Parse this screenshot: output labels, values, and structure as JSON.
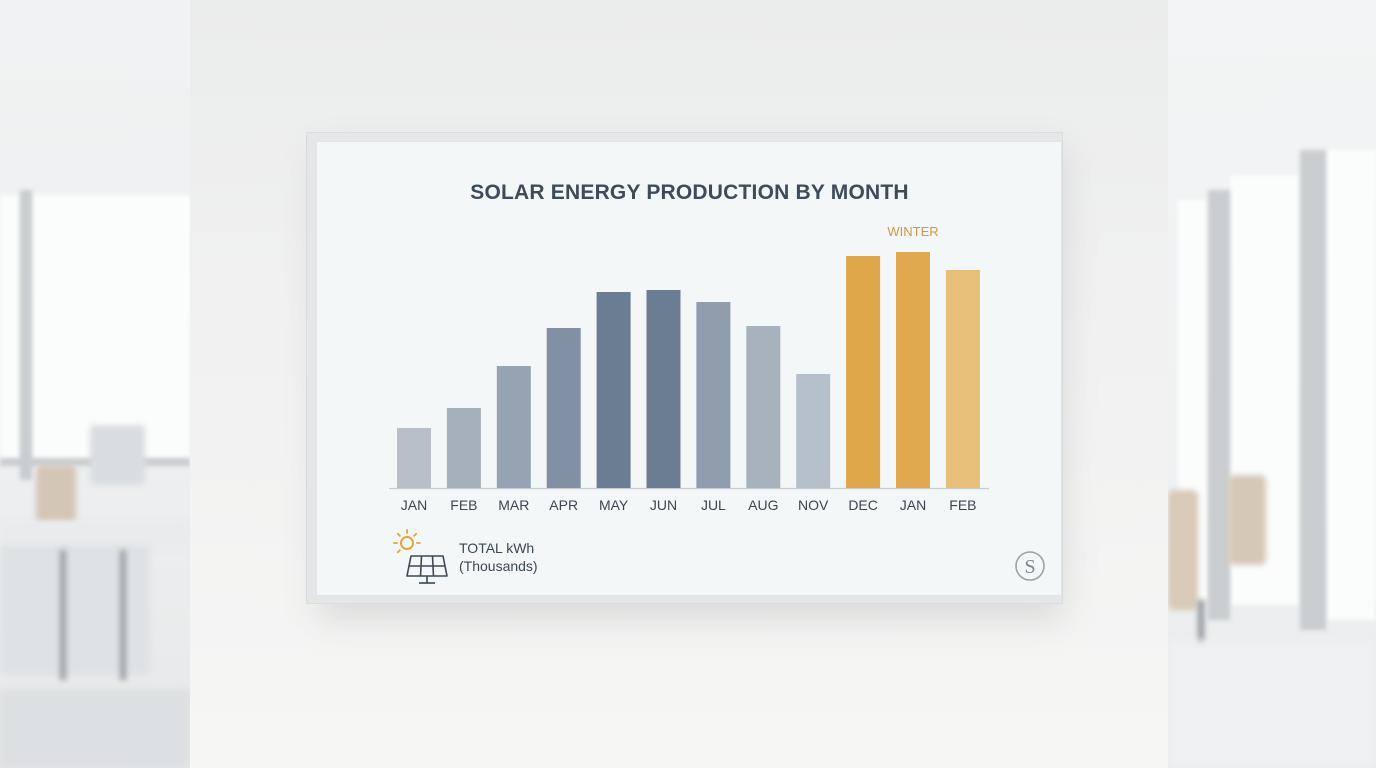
{
  "chart_data": {
    "type": "bar",
    "title": "SOLAR ENERGY PRODUCTION BY MONTH",
    "categories": [
      "JAN",
      "FEB",
      "MAR",
      "APR",
      "MAY",
      "JUN",
      "JUL",
      "AUG",
      "NOV",
      "DEC",
      "JAN",
      "FEB"
    ],
    "values": [
      30,
      40,
      61,
      80,
      98,
      99,
      93,
      81,
      57,
      116,
      118,
      109
    ],
    "xlabel": "",
    "ylabel": "",
    "ylim": [
      0,
      125
    ],
    "grid": false,
    "bar_colors": [
      "#b7bfc9",
      "#a5b0bc",
      "#95a3b2",
      "#8190a2",
      "#6a7d93",
      "#6a7d93",
      "#8f9dad",
      "#a7b2bd",
      "#b6c0cb",
      "#e0a64a",
      "#e0a94f",
      "#e8bf78"
    ],
    "annotations": [
      {
        "text": "WINTER",
        "category_index": 10
      }
    ],
    "annotation_color": "#cf9a3e",
    "legend": {
      "line1": "TOTAL kWh",
      "line2": "(Thousands)",
      "placement": "bottom-left"
    }
  },
  "logo": {
    "name": "S"
  }
}
